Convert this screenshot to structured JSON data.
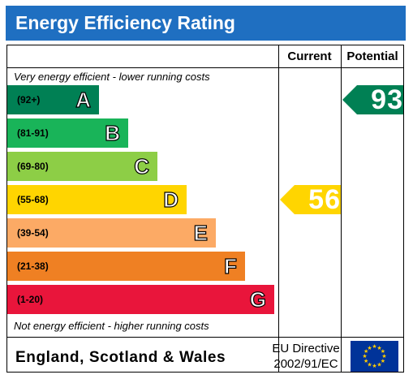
{
  "title": "Energy Efficiency Rating",
  "columns": {
    "current": "Current",
    "potential": "Potential"
  },
  "top_note": "Very energy efficient - lower running costs",
  "bottom_note": "Not energy efficient - higher running costs",
  "footer": {
    "country": "England, Scotland & Wales",
    "directive_line1": "EU Directive",
    "directive_line2": "2002/91/EC"
  },
  "colors": {
    "header": "#1f6fc1",
    "A": "#008054",
    "B": "#19b459",
    "C": "#8dce46",
    "D": "#ffd500",
    "E": "#fcaa65",
    "F": "#ef8023",
    "G": "#e9153b",
    "eu_blue": "#003399",
    "eu_star": "#ffcc00"
  },
  "chart_data": {
    "type": "bar",
    "bands": [
      {
        "letter": "A",
        "range": "(92+)",
        "min": 92,
        "max": 100
      },
      {
        "letter": "B",
        "range": "(81-91)",
        "min": 81,
        "max": 91
      },
      {
        "letter": "C",
        "range": "(69-80)",
        "min": 69,
        "max": 80
      },
      {
        "letter": "D",
        "range": "(55-68)",
        "min": 55,
        "max": 68
      },
      {
        "letter": "E",
        "range": "(39-54)",
        "min": 39,
        "max": 54
      },
      {
        "letter": "F",
        "range": "(21-38)",
        "min": 21,
        "max": 38
      },
      {
        "letter": "G",
        "range": "(1-20)",
        "min": 1,
        "max": 20
      }
    ],
    "current": {
      "value": 56,
      "band": "D"
    },
    "potential": {
      "value": 93,
      "band": "A"
    }
  }
}
